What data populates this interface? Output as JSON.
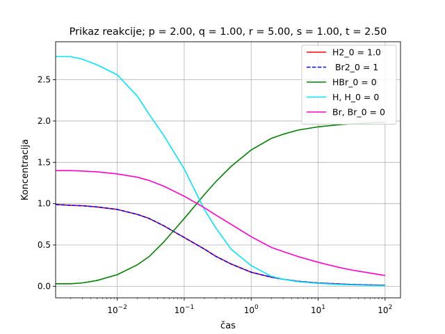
{
  "chart_data": {
    "type": "line",
    "title": "Prikaz reakcije; p = 2.00, q = 1.00, r = 5.00, s = 1.00, t = 2.50",
    "xlabel": "čas",
    "ylabel": "Koncentracija",
    "xscale": "log",
    "xlim": [
      0.0012,
      170
    ],
    "ylim": [
      -0.14,
      2.96
    ],
    "yticks": [
      0.0,
      0.5,
      1.0,
      1.5,
      2.0,
      2.5
    ],
    "ytick_labels": [
      "0.0",
      "0.5",
      "1.0",
      "1.5",
      "2.0",
      "2.5"
    ],
    "xticks": [
      0.01,
      0.1,
      1,
      10,
      100
    ],
    "xtick_labels": [
      {
        "base": "10",
        "exp": "−2"
      },
      {
        "base": "10",
        "exp": "−1"
      },
      {
        "base": "10",
        "exp": "0"
      },
      {
        "base": "10",
        "exp": "1"
      },
      {
        "base": "10",
        "exp": "2"
      }
    ],
    "grid": true,
    "legend_position": "top-right",
    "series": [
      {
        "name": "H2_0 = 1.0",
        "color": "#ff0000",
        "dash": "solid",
        "x": [
          0.001,
          0.002,
          0.003,
          0.005,
          0.01,
          0.02,
          0.03,
          0.05,
          0.1,
          0.2,
          0.3,
          0.5,
          1,
          2,
          3,
          5,
          10,
          20,
          30,
          50,
          100
        ],
        "y": [
          0.99,
          0.98,
          0.975,
          0.96,
          0.93,
          0.87,
          0.82,
          0.73,
          0.59,
          0.45,
          0.36,
          0.27,
          0.17,
          0.11,
          0.085,
          0.06,
          0.04,
          0.028,
          0.022,
          0.017,
          0.012
        ]
      },
      {
        "name": " Br2_0 = 1",
        "color": "#0000ff",
        "dash": "dashed",
        "x": [
          0.001,
          0.002,
          0.003,
          0.005,
          0.01,
          0.02,
          0.03,
          0.05,
          0.1,
          0.2,
          0.3,
          0.5,
          1,
          2,
          3,
          5,
          10,
          20,
          30,
          50,
          100
        ],
        "y": [
          0.99,
          0.98,
          0.975,
          0.96,
          0.93,
          0.87,
          0.82,
          0.73,
          0.59,
          0.45,
          0.36,
          0.27,
          0.17,
          0.11,
          0.085,
          0.06,
          0.04,
          0.028,
          0.022,
          0.017,
          0.012
        ]
      },
      {
        "name": "HBr_0 = 0",
        "color": "#008000",
        "dash": "solid",
        "x": [
          0.001,
          0.002,
          0.003,
          0.005,
          0.01,
          0.02,
          0.03,
          0.05,
          0.1,
          0.2,
          0.3,
          0.5,
          1,
          2,
          3,
          5,
          10,
          20,
          30,
          50,
          100
        ],
        "y": [
          0.03,
          0.03,
          0.04,
          0.07,
          0.14,
          0.26,
          0.36,
          0.54,
          0.82,
          1.11,
          1.27,
          1.45,
          1.65,
          1.79,
          1.84,
          1.89,
          1.93,
          1.955,
          1.965,
          1.975,
          1.985
        ]
      },
      {
        "name": "H, H_0 = 0",
        "color": "#00e5ff",
        "dash": "solid",
        "x": [
          0.001,
          0.002,
          0.003,
          0.005,
          0.01,
          0.02,
          0.03,
          0.05,
          0.1,
          0.2,
          0.3,
          0.5,
          1,
          2,
          3,
          5,
          10,
          20,
          30,
          50,
          100
        ],
        "y": [
          2.78,
          2.78,
          2.75,
          2.68,
          2.56,
          2.3,
          2.08,
          1.82,
          1.42,
          0.93,
          0.7,
          0.45,
          0.25,
          0.12,
          0.085,
          0.055,
          0.035,
          0.022,
          0.017,
          0.012,
          0.008
        ]
      },
      {
        "name": "Br, Br_0 = 0",
        "color": "#ff00cc",
        "dash": "solid",
        "x": [
          0.001,
          0.002,
          0.003,
          0.005,
          0.01,
          0.02,
          0.03,
          0.05,
          0.1,
          0.2,
          0.3,
          0.5,
          1,
          2,
          3,
          5,
          10,
          20,
          30,
          50,
          100
        ],
        "y": [
          1.4,
          1.4,
          1.395,
          1.385,
          1.36,
          1.32,
          1.28,
          1.21,
          1.09,
          0.95,
          0.86,
          0.75,
          0.6,
          0.47,
          0.42,
          0.36,
          0.29,
          0.23,
          0.2,
          0.17,
          0.13
        ]
      }
    ]
  }
}
